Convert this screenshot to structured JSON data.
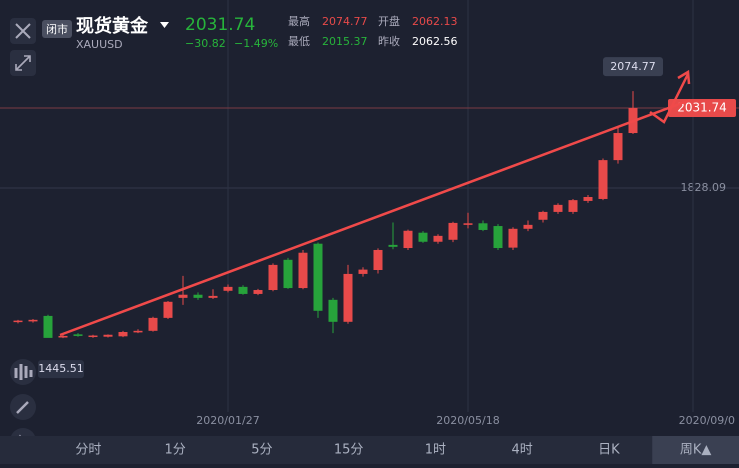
{
  "header": {
    "status": "闭市",
    "title": "现货黄金",
    "symbol": "XAUUSD",
    "price": "2031.74",
    "change": "−30.82",
    "change_pct": "−1.49%",
    "stats": [
      {
        "label": "最高",
        "value": "2074.77"
      },
      {
        "label": "开盘",
        "value": "2062.13"
      },
      {
        "label": "最低",
        "value": "2015.37"
      },
      {
        "label": "昨收",
        "value": "2062.56"
      }
    ]
  },
  "chart_data": {
    "type": "candlestick",
    "up_color": "#e84a4a",
    "down_color": "#27a33b",
    "categories": [
      null,
      null,
      null,
      null,
      null,
      null,
      null,
      null,
      null,
      null,
      null,
      null,
      null,
      null,
      "2020/01/27",
      null,
      null,
      null,
      null,
      null,
      null,
      null,
      null,
      null,
      null,
      null,
      null,
      null,
      null,
      null,
      "2020/05/18",
      null,
      null,
      null,
      null,
      null,
      null,
      null,
      null,
      null,
      null,
      null,
      null,
      null,
      null,
      "2020/09/0"
    ],
    "open": [
      1487,
      1488,
      1502,
      1447,
      1455,
      1450,
      1449,
      1450,
      1460,
      1464,
      1497,
      1548,
      1556,
      1548,
      1566,
      1576,
      1558,
      1568,
      1645,
      1573,
      1686,
      1543,
      1487,
      1609,
      1619,
      1683,
      1675,
      1714,
      1691,
      1696,
      1734,
      1738,
      1731,
      1676,
      1724,
      1747,
      1767,
      1767,
      1795,
      1800,
      1899,
      1968,
      null,
      null,
      null,
      null
    ],
    "high": [
      1492,
      1494,
      1505,
      1455,
      1458,
      1454,
      1455,
      1464,
      1468,
      1500,
      1540,
      1604,
      1562,
      1570,
      1582,
      1580,
      1571,
      1636,
      1650,
      1670,
      1689,
      1548,
      1632,
      1626,
      1674,
      1740,
      1722,
      1718,
      1710,
      1742,
      1765,
      1745,
      1736,
      1728,
      1745,
      1770,
      1789,
      1800,
      1810,
      1903,
      1981,
      2074.77,
      null,
      null,
      null,
      null
    ],
    "low": [
      1483,
      1485,
      1447,
      1445.51,
      1449,
      1446,
      1447,
      1448,
      1458,
      1462,
      1494,
      1530,
      1543,
      1545,
      1562,
      1556,
      1555,
      1565,
      1571,
      1570,
      1497,
      1458,
      1482,
      1602,
      1610,
      1672,
      1670,
      1688,
      1686,
      1690,
      1725,
      1718,
      1670,
      1670,
      1718,
      1740,
      1762,
      1762,
      1790,
      1797,
      1890,
      1965.6,
      null,
      null,
      null,
      null
    ],
    "close": [
      1490,
      1492,
      1446,
      1451,
      1451,
      1452,
      1454,
      1461,
      1464,
      1497,
      1538,
      1556,
      1548,
      1553,
      1576,
      1558,
      1568,
      1632,
      1573,
      1663,
      1515,
      1487,
      1609,
      1620,
      1670,
      1678,
      1719,
      1691,
      1706,
      1739,
      1738,
      1721,
      1675,
      1724,
      1734,
      1767,
      1785,
      1797,
      1805,
      1899,
      1968,
      2031.74,
      null,
      null,
      null,
      null
    ],
    "last_price": 2031.74,
    "ylim": [
      1275,
      2307
    ],
    "yticks": [
      1828.09
    ]
  },
  "footer": {
    "tabs": [
      "分时",
      "1分",
      "5分",
      "15分",
      "1时",
      "4时",
      "日K",
      "周K▲"
    ]
  }
}
